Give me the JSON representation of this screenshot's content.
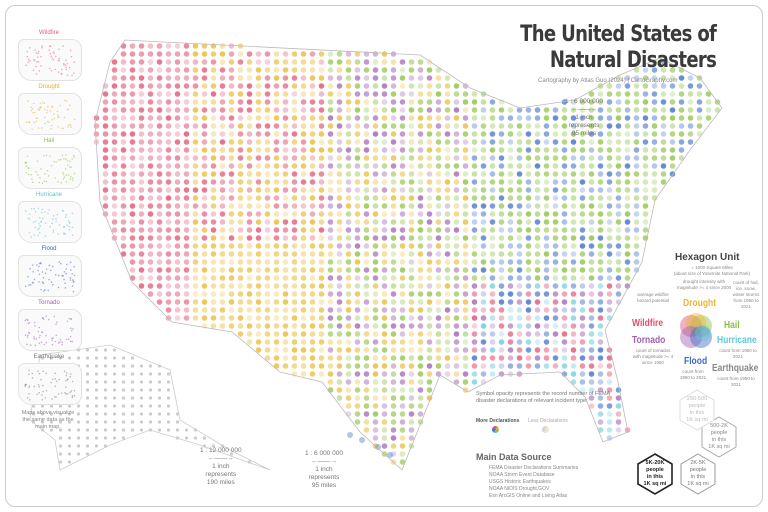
{
  "title_line1": "The United States of",
  "title_line2": "Natural Disasters",
  "credit": "Cartography by Atlas Guo (2024)   |   CartoGraphy.com",
  "scales": [
    {
      "ratio": "1 : 6 000 000",
      "text1": "1 inch",
      "text2": "represents",
      "text3": "95 miles"
    },
    {
      "ratio": "1 : 12 000 000",
      "text1": "1 inch",
      "text2": "represents",
      "text3": "190 miles"
    },
    {
      "ratio": "1 : 6 000 000",
      "text1": "1 inch",
      "text2": "represents",
      "text3": "95 miles"
    }
  ],
  "mini_maps": [
    {
      "label": "Wildfire",
      "color": "#e0607a"
    },
    {
      "label": "Drought",
      "color": "#e0b030"
    },
    {
      "label": "Hail",
      "color": "#8cc040"
    },
    {
      "label": "Hurricane",
      "color": "#60c0d0"
    },
    {
      "label": "Flood",
      "color": "#4060c0"
    },
    {
      "label": "Tornado",
      "color": "#a060b0"
    },
    {
      "label": "Earthquake",
      "color": "#777777"
    }
  ],
  "mini_note": "Maps above visualize the same data as the main map.",
  "hexagon_unit": {
    "title": "Hexagon Unit",
    "subtitle1": "= 1000 Square Miles",
    "subtitle2": "(about size of Yosemite National Park)",
    "categories": [
      {
        "name": "Drought",
        "color": "#e8b830",
        "desc": "drought intensity with magnitude >= 4 since 2000"
      },
      {
        "name": "Wildfire",
        "color": "#e05070",
        "desc": "average wildfire hazard potential"
      },
      {
        "name": "Hail",
        "color": "#8cc040",
        "desc": "count of hail, ice, snow, winter storms from 1950 to 2021"
      },
      {
        "name": "Tornado",
        "color": "#a060b0",
        "desc": "count of tornados with magnitude >= 4 since 1950"
      },
      {
        "name": "Hurricane",
        "color": "#60c8d8",
        "desc": "count from 1950 to 2021"
      },
      {
        "name": "Flood",
        "color": "#3c6cc8",
        "desc": "count from 1950 to 2021"
      },
      {
        "name": "Earthquake",
        "color": "#888888",
        "desc": "count from 1950 to 2021"
      }
    ]
  },
  "opacity_note": "Symbol opacity represents the record number of FEMA disaster declarations of relevant incident type:",
  "more_label": "More Declarations",
  "less_label": "Less Declarations",
  "source_title": "Main Data Source",
  "sources": [
    "FEMA Disaster Declarations Summaries",
    "NOAA Storm Event Database",
    "USGS Historic Earthquakes",
    "NOAA NIDIS Drought.GOV",
    "Esri ArcGIS Online and Living Atlas"
  ],
  "population_hexes": [
    {
      "line1": "5K-20K",
      "line2": "people",
      "line3": "in this",
      "line4": "1K sq mi"
    },
    {
      "line1": "2K-5K",
      "line2": "people",
      "line3": "in this",
      "line4": "1K sq mi"
    },
    {
      "line1": "500-2K",
      "line2": "people",
      "line3": "in this",
      "line4": "1K sq mi"
    },
    {
      "line1": "250-500",
      "line2": "people",
      "line3": "in this",
      "line4": "1K sq mi"
    }
  ]
}
